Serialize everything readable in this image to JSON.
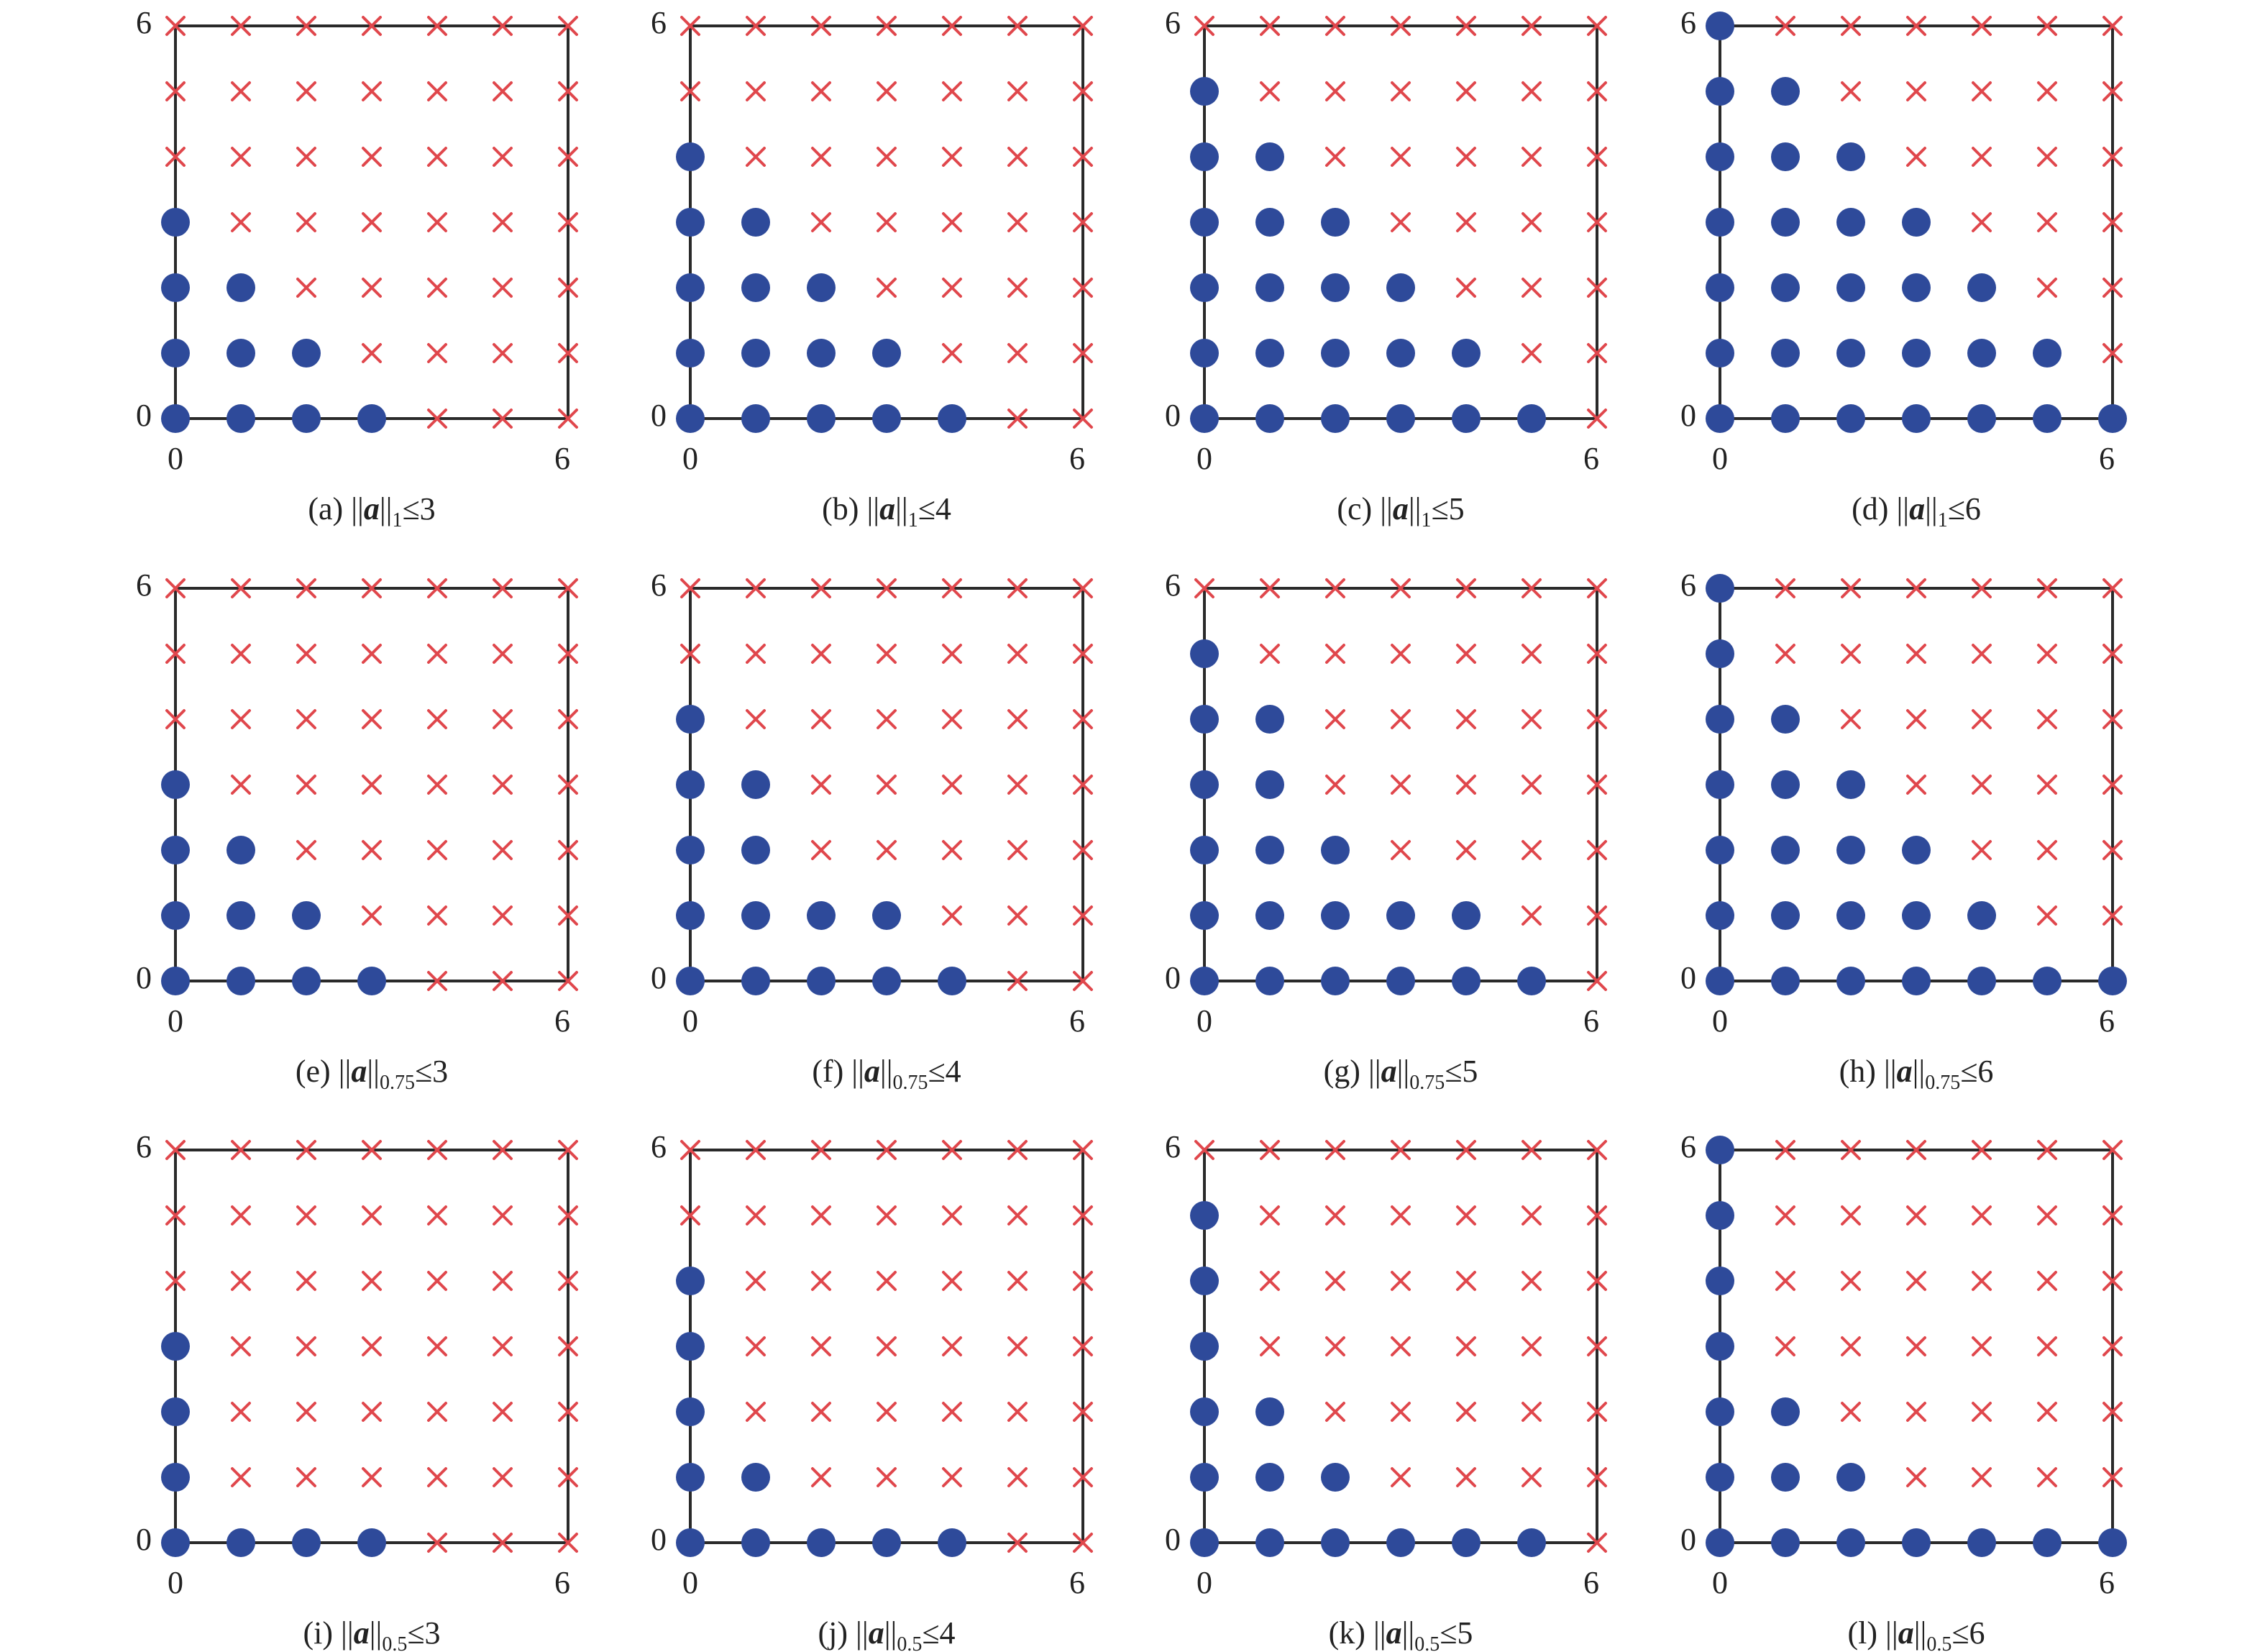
{
  "colors": {
    "in_set_marker": "#2e4a9a",
    "out_set_marker": "#e0474c",
    "frame": "#2a2a2a",
    "text": "#222222"
  },
  "markers": {
    "in_set": "filled-circle",
    "out_set": "cross"
  },
  "chart_data": [
    {
      "panel": "(a)",
      "norm": "1",
      "bound": 3,
      "type": "scatter",
      "xlim": [
        0,
        6
      ],
      "ylim": [
        0,
        6
      ],
      "xticks": [
        "0",
        "6"
      ],
      "yticks": [
        "0",
        "6"
      ],
      "col_max": [
        3,
        2,
        1,
        0,
        -1,
        -1,
        -1
      ]
    },
    {
      "panel": "(b)",
      "norm": "1",
      "bound": 4,
      "type": "scatter",
      "xlim": [
        0,
        6
      ],
      "ylim": [
        0,
        6
      ],
      "xticks": [
        "0",
        "6"
      ],
      "yticks": [
        "0",
        "6"
      ],
      "col_max": [
        4,
        3,
        2,
        1,
        0,
        -1,
        -1
      ]
    },
    {
      "panel": "(c)",
      "norm": "1",
      "bound": 5,
      "type": "scatter",
      "xlim": [
        0,
        6
      ],
      "ylim": [
        0,
        6
      ],
      "xticks": [
        "0",
        "6"
      ],
      "yticks": [
        "0",
        "6"
      ],
      "col_max": [
        5,
        4,
        3,
        2,
        1,
        0,
        -1
      ]
    },
    {
      "panel": "(d)",
      "norm": "1",
      "bound": 6,
      "type": "scatter",
      "xlim": [
        0,
        6
      ],
      "ylim": [
        0,
        6
      ],
      "xticks": [
        "0",
        "6"
      ],
      "yticks": [
        "0",
        "6"
      ],
      "col_max": [
        6,
        5,
        4,
        3,
        2,
        1,
        0
      ]
    },
    {
      "panel": "(e)",
      "norm": "0.75",
      "bound": 3,
      "type": "scatter",
      "xlim": [
        0,
        6
      ],
      "ylim": [
        0,
        6
      ],
      "xticks": [
        "0",
        "6"
      ],
      "yticks": [
        "0",
        "6"
      ],
      "col_max": [
        3,
        2,
        1,
        0,
        -1,
        -1,
        -1
      ]
    },
    {
      "panel": "(f)",
      "norm": "0.75",
      "bound": 4,
      "type": "scatter",
      "xlim": [
        0,
        6
      ],
      "ylim": [
        0,
        6
      ],
      "xticks": [
        "0",
        "6"
      ],
      "yticks": [
        "0",
        "6"
      ],
      "col_max": [
        4,
        3,
        1,
        1,
        0,
        -1,
        -1
      ]
    },
    {
      "panel": "(g)",
      "norm": "0.75",
      "bound": 5,
      "type": "scatter",
      "xlim": [
        0,
        6
      ],
      "ylim": [
        0,
        6
      ],
      "xticks": [
        "0",
        "6"
      ],
      "yticks": [
        "0",
        "6"
      ],
      "col_max": [
        5,
        4,
        2,
        1,
        1,
        0,
        -1
      ]
    },
    {
      "panel": "(h)",
      "norm": "0.75",
      "bound": 6,
      "type": "scatter",
      "xlim": [
        0,
        6
      ],
      "ylim": [
        0,
        6
      ],
      "xticks": [
        "0",
        "6"
      ],
      "yticks": [
        "0",
        "6"
      ],
      "col_max": [
        6,
        4,
        3,
        2,
        1,
        0,
        0
      ]
    },
    {
      "panel": "(i)",
      "norm": "0.5",
      "bound": 3,
      "type": "scatter",
      "xlim": [
        0,
        6
      ],
      "ylim": [
        0,
        6
      ],
      "xticks": [
        "0",
        "6"
      ],
      "yticks": [
        "0",
        "6"
      ],
      "col_max": [
        3,
        0,
        0,
        0,
        -1,
        -1,
        -1
      ]
    },
    {
      "panel": "(j)",
      "norm": "0.5",
      "bound": 4,
      "type": "scatter",
      "xlim": [
        0,
        6
      ],
      "ylim": [
        0,
        6
      ],
      "xticks": [
        "0",
        "6"
      ],
      "yticks": [
        "0",
        "6"
      ],
      "col_max": [
        4,
        1,
        0,
        0,
        0,
        -1,
        -1
      ]
    },
    {
      "panel": "(k)",
      "norm": "0.5",
      "bound": 5,
      "type": "scatter",
      "xlim": [
        0,
        6
      ],
      "ylim": [
        0,
        6
      ],
      "xticks": [
        "0",
        "6"
      ],
      "yticks": [
        "0",
        "6"
      ],
      "col_max": [
        5,
        2,
        1,
        0,
        0,
        0,
        -1
      ]
    },
    {
      "panel": "(l)",
      "norm": "0.5",
      "bound": 6,
      "type": "scatter",
      "xlim": [
        0,
        6
      ],
      "ylim": [
        0,
        6
      ],
      "xticks": [
        "0",
        "6"
      ],
      "yticks": [
        "0",
        "6"
      ],
      "col_max": [
        6,
        2,
        1,
        0,
        0,
        0,
        0
      ]
    }
  ]
}
